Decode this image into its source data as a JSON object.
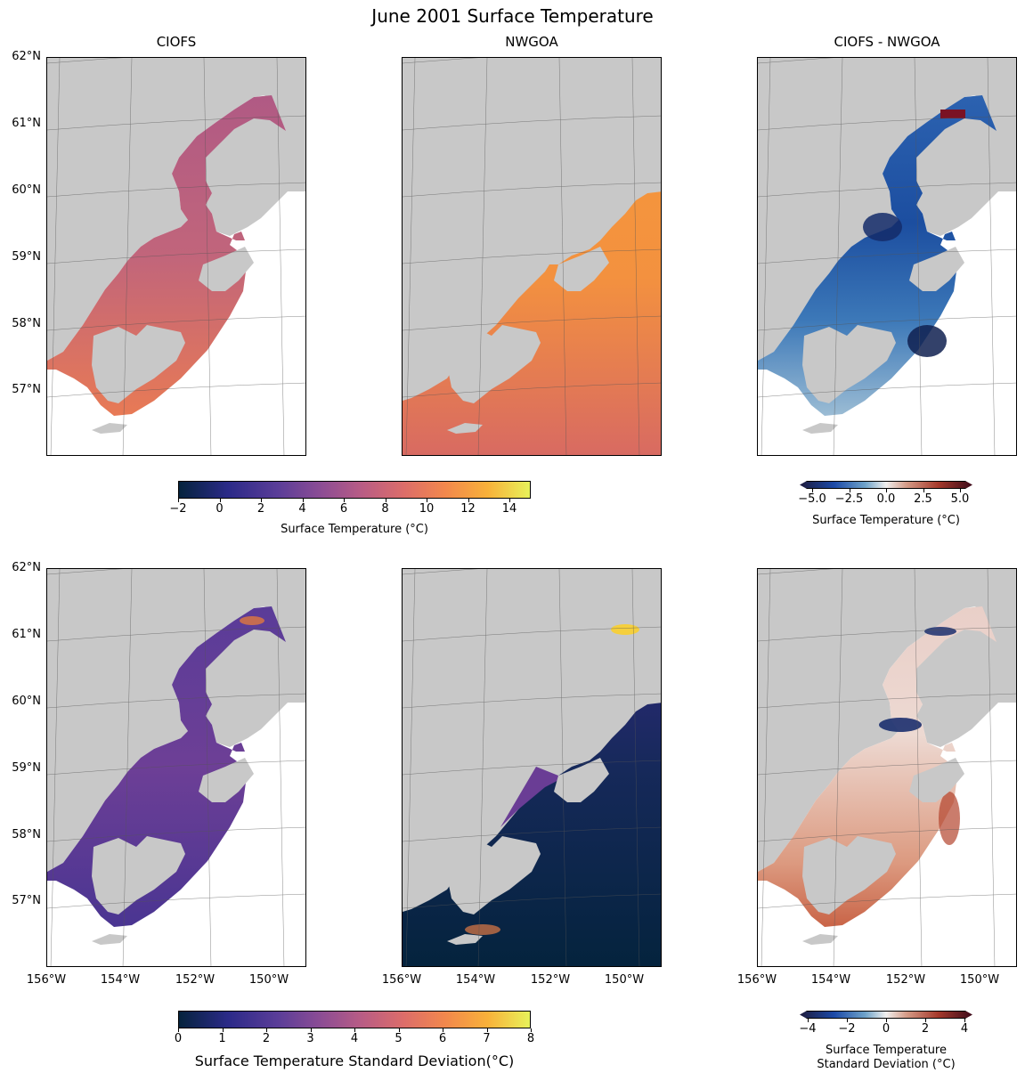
{
  "title": "June 2001 Surface Temperature",
  "panel_titles": [
    "CIOFS",
    "NWGOA",
    "CIOFS - NWGOA"
  ],
  "lat_ticks": [
    "62°N",
    "61°N",
    "60°N",
    "59°N",
    "58°N",
    "57°N"
  ],
  "lon_ticks": [
    "156°W",
    "154°W",
    "152°W",
    "150°W"
  ],
  "colorbars": {
    "temp": {
      "ticks": [
        "−2",
        "0",
        "2",
        "4",
        "6",
        "8",
        "10",
        "12",
        "14"
      ],
      "label": "Surface Temperature (°C)",
      "range": [
        -2,
        15
      ],
      "colormap": "thermal"
    },
    "temp_diff": {
      "ticks": [
        "−5.0",
        "−2.5",
        "0.0",
        "2.5",
        "5.0"
      ],
      "label": "Surface Temperature (°C)",
      "range": [
        -6,
        6
      ],
      "colormap": "balance"
    },
    "std": {
      "ticks": [
        "0",
        "1",
        "2",
        "3",
        "4",
        "5",
        "6",
        "7",
        "8"
      ],
      "label": "Surface Temperature Standard Deviation(°C)",
      "range": [
        0,
        8
      ],
      "colormap": "thermal"
    },
    "std_diff": {
      "ticks": [
        "−4",
        "−2",
        "0",
        "2",
        "4"
      ],
      "label_line1": "Surface Temperature",
      "label_line2": "Standard Deviation (°C)",
      "range": [
        -4.5,
        4.5
      ],
      "colormap": "balance"
    }
  },
  "colors": {
    "land": "#c8c8c8",
    "ocean_no_data": "#ffffff",
    "grid": "#555555"
  },
  "chart_data": {
    "type": "heatmap",
    "title": "June 2001 Surface Temperature",
    "panels": [
      {
        "row": "mean",
        "model": "CIOFS",
        "field": "surface temperature",
        "unit": "°C",
        "typical_value": 7
      },
      {
        "row": "mean",
        "model": "NWGOA",
        "field": "surface temperature",
        "unit": "°C",
        "typical_value": 9.5
      },
      {
        "row": "mean",
        "model": "CIOFS - NWGOA",
        "field": "surface temperature difference",
        "unit": "°C",
        "typical_value": -3
      },
      {
        "row": "std",
        "model": "CIOFS",
        "field": "surface temperature standard deviation",
        "unit": "°C",
        "typical_value": 2
      },
      {
        "row": "std",
        "model": "NWGOA",
        "field": "surface temperature standard deviation",
        "unit": "°C",
        "typical_value": 1
      },
      {
        "row": "std",
        "model": "CIOFS - NWGOA",
        "field": "surface temperature standard deviation difference",
        "unit": "°C",
        "typical_value": 1
      }
    ],
    "lon_range": [
      "156°W",
      "149°W"
    ],
    "lat_range": [
      "56°N",
      "62°N"
    ]
  }
}
